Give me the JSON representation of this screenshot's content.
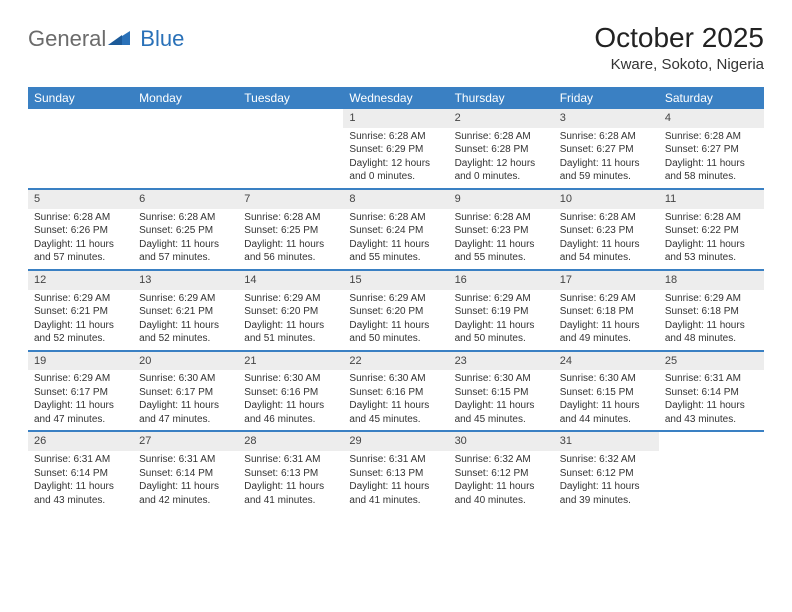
{
  "logo": {
    "word1": "General",
    "word2": "Blue"
  },
  "title": "October 2025",
  "subtitle": "Kware, Sokoto, Nigeria",
  "colors": {
    "header_bg": "#3a80c3",
    "header_text": "#ffffff",
    "daynum_bg": "#ededed",
    "row_border": "#3a80c3",
    "body_text": "#333333",
    "logo_gray": "#6b6b6b",
    "logo_blue": "#2a71b8"
  },
  "weekdays": [
    "Sunday",
    "Monday",
    "Tuesday",
    "Wednesday",
    "Thursday",
    "Friday",
    "Saturday"
  ],
  "weeks": [
    [
      {
        "n": "",
        "sr": "",
        "ss": "",
        "dl": ""
      },
      {
        "n": "",
        "sr": "",
        "ss": "",
        "dl": ""
      },
      {
        "n": "",
        "sr": "",
        "ss": "",
        "dl": ""
      },
      {
        "n": "1",
        "sr": "Sunrise: 6:28 AM",
        "ss": "Sunset: 6:29 PM",
        "dl": "Daylight: 12 hours and 0 minutes."
      },
      {
        "n": "2",
        "sr": "Sunrise: 6:28 AM",
        "ss": "Sunset: 6:28 PM",
        "dl": "Daylight: 12 hours and 0 minutes."
      },
      {
        "n": "3",
        "sr": "Sunrise: 6:28 AM",
        "ss": "Sunset: 6:27 PM",
        "dl": "Daylight: 11 hours and 59 minutes."
      },
      {
        "n": "4",
        "sr": "Sunrise: 6:28 AM",
        "ss": "Sunset: 6:27 PM",
        "dl": "Daylight: 11 hours and 58 minutes."
      }
    ],
    [
      {
        "n": "5",
        "sr": "Sunrise: 6:28 AM",
        "ss": "Sunset: 6:26 PM",
        "dl": "Daylight: 11 hours and 57 minutes."
      },
      {
        "n": "6",
        "sr": "Sunrise: 6:28 AM",
        "ss": "Sunset: 6:25 PM",
        "dl": "Daylight: 11 hours and 57 minutes."
      },
      {
        "n": "7",
        "sr": "Sunrise: 6:28 AM",
        "ss": "Sunset: 6:25 PM",
        "dl": "Daylight: 11 hours and 56 minutes."
      },
      {
        "n": "8",
        "sr": "Sunrise: 6:28 AM",
        "ss": "Sunset: 6:24 PM",
        "dl": "Daylight: 11 hours and 55 minutes."
      },
      {
        "n": "9",
        "sr": "Sunrise: 6:28 AM",
        "ss": "Sunset: 6:23 PM",
        "dl": "Daylight: 11 hours and 55 minutes."
      },
      {
        "n": "10",
        "sr": "Sunrise: 6:28 AM",
        "ss": "Sunset: 6:23 PM",
        "dl": "Daylight: 11 hours and 54 minutes."
      },
      {
        "n": "11",
        "sr": "Sunrise: 6:28 AM",
        "ss": "Sunset: 6:22 PM",
        "dl": "Daylight: 11 hours and 53 minutes."
      }
    ],
    [
      {
        "n": "12",
        "sr": "Sunrise: 6:29 AM",
        "ss": "Sunset: 6:21 PM",
        "dl": "Daylight: 11 hours and 52 minutes."
      },
      {
        "n": "13",
        "sr": "Sunrise: 6:29 AM",
        "ss": "Sunset: 6:21 PM",
        "dl": "Daylight: 11 hours and 52 minutes."
      },
      {
        "n": "14",
        "sr": "Sunrise: 6:29 AM",
        "ss": "Sunset: 6:20 PM",
        "dl": "Daylight: 11 hours and 51 minutes."
      },
      {
        "n": "15",
        "sr": "Sunrise: 6:29 AM",
        "ss": "Sunset: 6:20 PM",
        "dl": "Daylight: 11 hours and 50 minutes."
      },
      {
        "n": "16",
        "sr": "Sunrise: 6:29 AM",
        "ss": "Sunset: 6:19 PM",
        "dl": "Daylight: 11 hours and 50 minutes."
      },
      {
        "n": "17",
        "sr": "Sunrise: 6:29 AM",
        "ss": "Sunset: 6:18 PM",
        "dl": "Daylight: 11 hours and 49 minutes."
      },
      {
        "n": "18",
        "sr": "Sunrise: 6:29 AM",
        "ss": "Sunset: 6:18 PM",
        "dl": "Daylight: 11 hours and 48 minutes."
      }
    ],
    [
      {
        "n": "19",
        "sr": "Sunrise: 6:29 AM",
        "ss": "Sunset: 6:17 PM",
        "dl": "Daylight: 11 hours and 47 minutes."
      },
      {
        "n": "20",
        "sr": "Sunrise: 6:30 AM",
        "ss": "Sunset: 6:17 PM",
        "dl": "Daylight: 11 hours and 47 minutes."
      },
      {
        "n": "21",
        "sr": "Sunrise: 6:30 AM",
        "ss": "Sunset: 6:16 PM",
        "dl": "Daylight: 11 hours and 46 minutes."
      },
      {
        "n": "22",
        "sr": "Sunrise: 6:30 AM",
        "ss": "Sunset: 6:16 PM",
        "dl": "Daylight: 11 hours and 45 minutes."
      },
      {
        "n": "23",
        "sr": "Sunrise: 6:30 AM",
        "ss": "Sunset: 6:15 PM",
        "dl": "Daylight: 11 hours and 45 minutes."
      },
      {
        "n": "24",
        "sr": "Sunrise: 6:30 AM",
        "ss": "Sunset: 6:15 PM",
        "dl": "Daylight: 11 hours and 44 minutes."
      },
      {
        "n": "25",
        "sr": "Sunrise: 6:31 AM",
        "ss": "Sunset: 6:14 PM",
        "dl": "Daylight: 11 hours and 43 minutes."
      }
    ],
    [
      {
        "n": "26",
        "sr": "Sunrise: 6:31 AM",
        "ss": "Sunset: 6:14 PM",
        "dl": "Daylight: 11 hours and 43 minutes."
      },
      {
        "n": "27",
        "sr": "Sunrise: 6:31 AM",
        "ss": "Sunset: 6:14 PM",
        "dl": "Daylight: 11 hours and 42 minutes."
      },
      {
        "n": "28",
        "sr": "Sunrise: 6:31 AM",
        "ss": "Sunset: 6:13 PM",
        "dl": "Daylight: 11 hours and 41 minutes."
      },
      {
        "n": "29",
        "sr": "Sunrise: 6:31 AM",
        "ss": "Sunset: 6:13 PM",
        "dl": "Daylight: 11 hours and 41 minutes."
      },
      {
        "n": "30",
        "sr": "Sunrise: 6:32 AM",
        "ss": "Sunset: 6:12 PM",
        "dl": "Daylight: 11 hours and 40 minutes."
      },
      {
        "n": "31",
        "sr": "Sunrise: 6:32 AM",
        "ss": "Sunset: 6:12 PM",
        "dl": "Daylight: 11 hours and 39 minutes."
      },
      {
        "n": "",
        "sr": "",
        "ss": "",
        "dl": ""
      }
    ]
  ]
}
